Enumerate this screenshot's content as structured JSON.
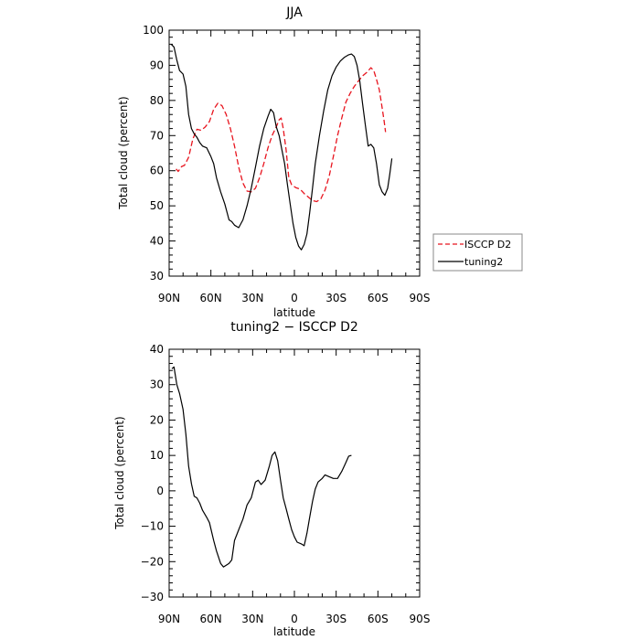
{
  "chart_data": [
    {
      "type": "line",
      "title": "JJA",
      "xlabel": "latitude",
      "ylabel": "Total cloud (percent)",
      "xlim": [
        90,
        -90
      ],
      "ylim": [
        30,
        100
      ],
      "x_tick_values": [
        90,
        60,
        30,
        0,
        -30,
        -60,
        -90
      ],
      "x_tick_labels": [
        "90N",
        "60N",
        "30N",
        "0",
        "30S",
        "60S",
        "90S"
      ],
      "y_tick_values": [
        30,
        40,
        50,
        60,
        70,
        80,
        90,
        100
      ],
      "y_tick_labels": [
        "30",
        "40",
        "50",
        "60",
        "70",
        "80",
        "90",
        "100"
      ],
      "grid": false,
      "legend_position": "right",
      "series": [
        {
          "name": "ISCCP D2",
          "color": "#e8141e",
          "dash": "dashed",
          "points": [
            [
              85,
              60.5
            ],
            [
              83.5,
              59.8
            ],
            [
              81,
              61.2
            ],
            [
              79,
              61.5
            ],
            [
              76,
              63.8
            ],
            [
              73,
              69
            ],
            [
              70,
              71.8
            ],
            [
              67,
              71.5
            ],
            [
              64,
              72.5
            ],
            [
              61,
              74
            ],
            [
              58,
              77.5
            ],
            [
              55,
              79.2
            ],
            [
              52,
              78.5
            ],
            [
              49,
              76
            ],
            [
              46,
              72
            ],
            [
              43,
              67
            ],
            [
              40,
              61
            ],
            [
              37,
              56.5
            ],
            [
              34,
              54.2
            ],
            [
              31,
              54
            ],
            [
              28,
              55
            ],
            [
              25,
              58
            ],
            [
              22,
              62
            ],
            [
              19,
              66.5
            ],
            [
              16,
              70
            ],
            [
              13,
              72.5
            ],
            [
              11,
              74.5
            ],
            [
              9.5,
              75
            ],
            [
              8,
              72
            ],
            [
              6,
              66
            ],
            [
              4,
              58
            ],
            [
              2,
              56
            ],
            [
              -1,
              55.2
            ],
            [
              -4,
              54.8
            ],
            [
              -7,
              53.5
            ],
            [
              -10,
              52.5
            ],
            [
              -13,
              51.5
            ],
            [
              -16,
              51.2
            ],
            [
              -19,
              52
            ],
            [
              -22,
              54.5
            ],
            [
              -25,
              58.5
            ],
            [
              -28,
              64
            ],
            [
              -31,
              70
            ],
            [
              -34,
              75
            ],
            [
              -37,
              79.5
            ],
            [
              -40,
              82
            ],
            [
              -43,
              84
            ],
            [
              -46,
              85.5
            ],
            [
              -49,
              87
            ],
            [
              -52,
              88
            ],
            [
              -55,
              89.3
            ],
            [
              -57,
              88.5
            ],
            [
              -59,
              86
            ],
            [
              -61,
              83
            ],
            [
              -63,
              78
            ],
            [
              -64.5,
              74
            ],
            [
              -65.5,
              71
            ]
          ]
        },
        {
          "name": "tuning2",
          "color": "#000000",
          "dash": "solid",
          "points": [
            [
              88.5,
              96
            ],
            [
              86.5,
              95.2
            ],
            [
              84.5,
              91.5
            ],
            [
              82.5,
              88.5
            ],
            [
              80,
              87.5
            ],
            [
              78,
              84
            ],
            [
              76,
              76
            ],
            [
              74,
              72
            ],
            [
              72,
              70.5
            ],
            [
              70,
              69.5
            ],
            [
              68,
              68
            ],
            [
              66,
              67
            ],
            [
              63,
              66.5
            ],
            [
              60,
              64
            ],
            [
              58,
              62
            ],
            [
              56,
              58
            ],
            [
              53,
              54
            ],
            [
              50,
              50.5
            ],
            [
              47,
              46
            ],
            [
              45,
              45.5
            ],
            [
              43,
              44.5
            ],
            [
              40,
              43.8
            ],
            [
              37,
              46
            ],
            [
              34,
              50
            ],
            [
              31,
              55
            ],
            [
              28,
              61
            ],
            [
              25,
              67
            ],
            [
              22,
              72
            ],
            [
              19,
              75.5
            ],
            [
              17,
              77.5
            ],
            [
              15,
              76.5
            ],
            [
              13,
              72.5
            ],
            [
              11,
              70
            ],
            [
              9,
              66
            ],
            [
              7,
              62
            ],
            [
              5,
              56
            ],
            [
              3,
              50.5
            ],
            [
              1,
              45
            ],
            [
              -1,
              41
            ],
            [
              -3,
              38.5
            ],
            [
              -5,
              37.5
            ],
            [
              -7,
              39
            ],
            [
              -9,
              42
            ],
            [
              -11,
              48
            ],
            [
              -13,
              55
            ],
            [
              -15,
              62
            ],
            [
              -18,
              70
            ],
            [
              -21,
              77
            ],
            [
              -24,
              83
            ],
            [
              -27,
              87
            ],
            [
              -30,
              89.5
            ],
            [
              -33,
              91.2
            ],
            [
              -36,
              92.3
            ],
            [
              -39,
              93
            ],
            [
              -41,
              93.2
            ],
            [
              -43,
              92.5
            ],
            [
              -45,
              90
            ],
            [
              -47,
              85.5
            ],
            [
              -49,
              79
            ],
            [
              -51,
              73
            ],
            [
              -53,
              67
            ],
            [
              -55,
              67.5
            ],
            [
              -57,
              66.5
            ],
            [
              -59,
              62
            ],
            [
              -61,
              56
            ],
            [
              -63,
              54
            ],
            [
              -65,
              53
            ],
            [
              -67,
              55
            ],
            [
              -68.5,
              59
            ],
            [
              -70,
              63.5
            ]
          ]
        }
      ]
    },
    {
      "type": "line",
      "title": "tuning2 − ISCCP D2",
      "xlabel": "latitude",
      "ylabel": "Total cloud (percent)",
      "xlim": [
        90,
        -90
      ],
      "ylim": [
        -30,
        40
      ],
      "x_tick_values": [
        90,
        60,
        30,
        0,
        -30,
        -60,
        -90
      ],
      "x_tick_labels": [
        "90N",
        "60N",
        "30N",
        "0",
        "30S",
        "60S",
        "90S"
      ],
      "y_tick_values": [
        -30,
        -20,
        -10,
        0,
        10,
        20,
        30,
        40
      ],
      "y_tick_labels": [
        "−30",
        "−20",
        "−10",
        "0",
        "10",
        "20",
        "30",
        "40"
      ],
      "grid": false,
      "series": [
        {
          "color": "#000000",
          "dash": "solid",
          "points": [
            [
              88,
              34.5
            ],
            [
              86.5,
              35
            ],
            [
              84.5,
              30
            ],
            [
              82.5,
              27.5
            ],
            [
              80,
              23
            ],
            [
              78,
              16
            ],
            [
              76,
              7
            ],
            [
              74,
              2
            ],
            [
              72,
              -1.5
            ],
            [
              70,
              -2
            ],
            [
              68,
              -3.5
            ],
            [
              66,
              -5.5
            ],
            [
              63,
              -7.5
            ],
            [
              61,
              -9
            ],
            [
              58,
              -14
            ],
            [
              56,
              -17
            ],
            [
              53,
              -20.5
            ],
            [
              51,
              -21.5
            ],
            [
              49,
              -21
            ],
            [
              47,
              -20.5
            ],
            [
              45,
              -19.5
            ],
            [
              43,
              -14
            ],
            [
              40,
              -11
            ],
            [
              37,
              -8
            ],
            [
              34,
              -4
            ],
            [
              31,
              -2
            ],
            [
              28,
              2.5
            ],
            [
              26,
              3
            ],
            [
              24,
              1.8
            ],
            [
              21,
              3
            ],
            [
              18,
              7
            ],
            [
              16,
              10
            ],
            [
              14,
              11
            ],
            [
              12,
              8.5
            ],
            [
              10,
              3
            ],
            [
              8,
              -2
            ],
            [
              6,
              -5
            ],
            [
              4,
              -8
            ],
            [
              2,
              -11
            ],
            [
              0,
              -13
            ],
            [
              -2,
              -14.5
            ],
            [
              -5,
              -15
            ],
            [
              -7,
              -15.5
            ],
            [
              -9,
              -12
            ],
            [
              -11,
              -7.5
            ],
            [
              -13,
              -3
            ],
            [
              -15,
              0.5
            ],
            [
              -17,
              2.5
            ],
            [
              -20,
              3.5
            ],
            [
              -22,
              4.5
            ],
            [
              -25,
              4
            ],
            [
              -28,
              3.5
            ],
            [
              -31,
              3.5
            ],
            [
              -34,
              5.5
            ],
            [
              -37,
              8
            ],
            [
              -39,
              9.8
            ],
            [
              -41,
              10
            ]
          ]
        }
      ]
    }
  ]
}
